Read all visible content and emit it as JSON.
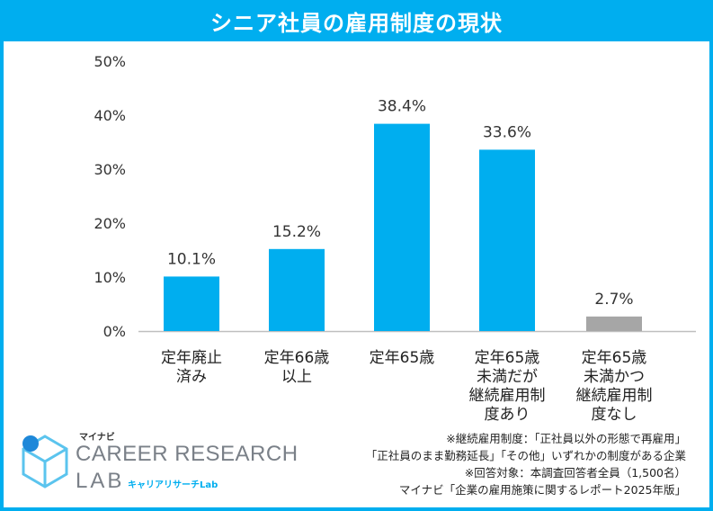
{
  "title": "シニア社員の雇用制度の現状",
  "chart_data": {
    "type": "bar",
    "categories": [
      "定年廃止\n済み",
      "定年66歳\n以上",
      "定年65歳",
      "定年65歳\n未満だが\n継続雇用制\n度あり",
      "定年65歳\n未満かつ\n継続雇用制\n度なし"
    ],
    "values": [
      10.1,
      15.2,
      38.4,
      33.6,
      2.7
    ],
    "value_labels": [
      "10.1%",
      "15.2%",
      "38.4%",
      "33.6%",
      "2.7%"
    ],
    "y_ticks": [
      "0%",
      "10%",
      "20%",
      "30%",
      "40%",
      "50%"
    ],
    "ylim": [
      0,
      50
    ],
    "bar_colors": [
      "#00aeef",
      "#00aeef",
      "#00aeef",
      "#00aeef",
      "#a6a6a6"
    ]
  },
  "notes": [
    "※継続雇用制度：「正社員以外の形態で再雇用」",
    "「正社員のまま勤務延長」「その他」いずれかの制度がある企業",
    "※回答対象：本調査回答者全員（1,500名）",
    "マイナビ「企業の雇用施策に関するレポート2025年版」"
  ],
  "logo": {
    "small": "マイナビ",
    "main": "CAREER RESEARCH",
    "lab": "LAB",
    "kana": "キャリアリサーチLab"
  },
  "colors": {
    "accent": "#00aeef",
    "gray_bar": "#a6a6a6"
  }
}
